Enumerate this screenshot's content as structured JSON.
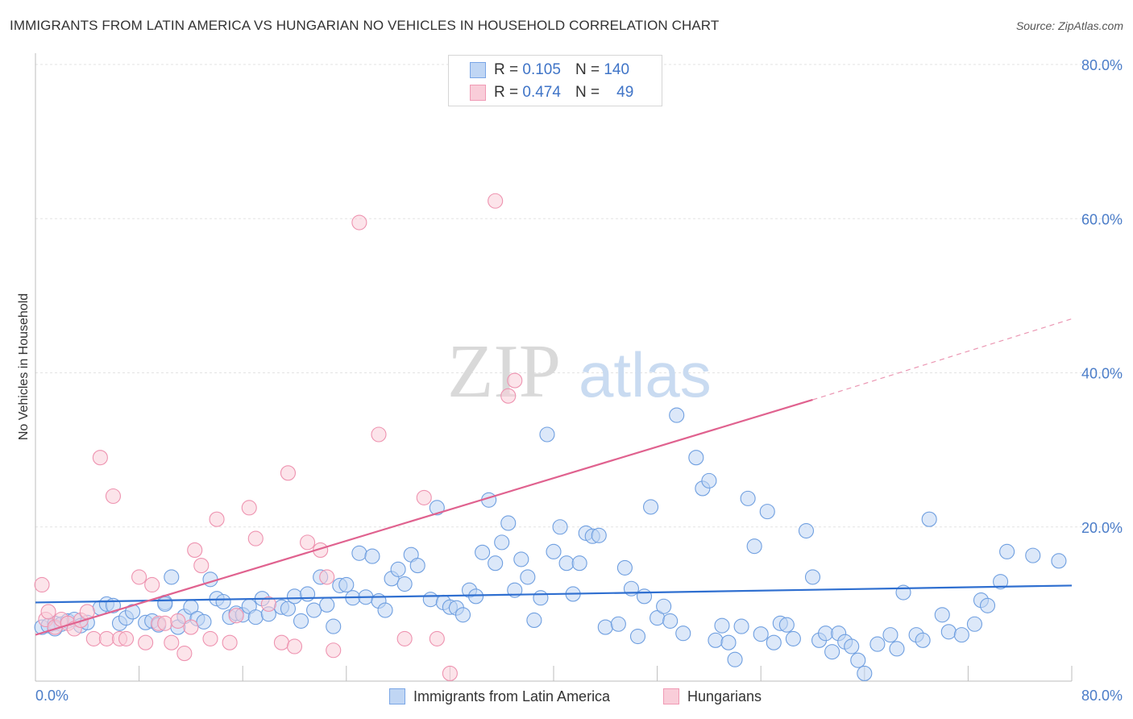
{
  "header": {
    "title": "IMMIGRANTS FROM LATIN AMERICA VS HUNGARIAN NO VEHICLES IN HOUSEHOLD CORRELATION CHART",
    "source": "Source: ZipAtlas.com"
  },
  "watermark": {
    "zip": "ZIP",
    "atlas": "atlas"
  },
  "legend": {
    "rows": [
      {
        "r_label": "R =",
        "r_value": "0.105",
        "n_label": "N =",
        "n_value": "140",
        "color": "#7aa6e6"
      },
      {
        "r_label": "R =",
        "r_value": "0.474",
        "n_label": "N =",
        "n_value": "49",
        "color": "#f09ab5"
      }
    ]
  },
  "bottom_legend": [
    {
      "label": "Immigrants from Latin America",
      "color": "#7aa6e6"
    },
    {
      "label": "Hungarians",
      "color": "#f09ab5"
    }
  ],
  "chart_data": {
    "type": "scatter",
    "ylabel": "No Vehicles in Household",
    "xlim": [
      0,
      80
    ],
    "ylim": [
      0,
      80
    ],
    "x_tick_labels": [
      "0.0%",
      "80.0%"
    ],
    "y_tick_labels": [
      "20.0%",
      "40.0%",
      "60.0%",
      "80.0%"
    ],
    "y_ticks": [
      20,
      40,
      60,
      80
    ],
    "grid": true,
    "series": [
      {
        "name": "Immigrants from Latin America",
        "color": "#7aa6e6",
        "trend": {
          "x0": 0,
          "y0": 10.2,
          "x1": 80,
          "y1": 12.4
        },
        "points": [
          [
            0.5,
            7.0
          ],
          [
            1.0,
            7.2
          ],
          [
            1.5,
            7.5
          ],
          [
            2.0,
            7.4
          ],
          [
            2.5,
            7.8
          ],
          [
            3.0,
            8.0
          ],
          [
            3.5,
            7.2
          ],
          [
            4.0,
            7.6
          ],
          [
            5.0,
            9.5
          ],
          [
            5.5,
            10.0
          ],
          [
            6.5,
            7.5
          ],
          [
            7.0,
            8.2
          ],
          [
            7.5,
            9.0
          ],
          [
            8.5,
            7.6
          ],
          [
            9.0,
            7.8
          ],
          [
            9.5,
            7.3
          ],
          [
            10.0,
            10.2
          ],
          [
            10.5,
            13.5
          ],
          [
            11.0,
            7.0
          ],
          [
            11.5,
            8.4
          ],
          [
            12.0,
            9.6
          ],
          [
            12.5,
            8.1
          ],
          [
            13.0,
            7.7
          ],
          [
            13.5,
            13.2
          ],
          [
            14.0,
            10.7
          ],
          [
            14.5,
            10.3
          ],
          [
            15.0,
            8.3
          ],
          [
            15.5,
            8.8
          ],
          [
            16.0,
            8.6
          ],
          [
            16.5,
            9.7
          ],
          [
            17.0,
            8.3
          ],
          [
            17.5,
            10.7
          ],
          [
            18.0,
            8.7
          ],
          [
            19.0,
            9.6
          ],
          [
            19.5,
            9.4
          ],
          [
            20.0,
            11.0
          ],
          [
            20.5,
            7.8
          ],
          [
            21.0,
            11.3
          ],
          [
            21.5,
            9.2
          ],
          [
            22.0,
            13.5
          ],
          [
            22.5,
            9.9
          ],
          [
            23.0,
            7.1
          ],
          [
            23.5,
            12.4
          ],
          [
            24.0,
            12.5
          ],
          [
            24.5,
            10.8
          ],
          [
            25.0,
            16.6
          ],
          [
            25.5,
            10.9
          ],
          [
            26.0,
            16.2
          ],
          [
            26.5,
            10.4
          ],
          [
            27.0,
            9.2
          ],
          [
            27.5,
            13.3
          ],
          [
            28.0,
            14.5
          ],
          [
            28.5,
            12.6
          ],
          [
            29.0,
            16.4
          ],
          [
            29.5,
            15.0
          ],
          [
            30.5,
            10.6
          ],
          [
            31.0,
            22.5
          ],
          [
            31.5,
            10.2
          ],
          [
            32.0,
            9.6
          ],
          [
            32.5,
            9.5
          ],
          [
            33.0,
            8.6
          ],
          [
            33.5,
            11.8
          ],
          [
            34.0,
            11.0
          ],
          [
            34.5,
            16.7
          ],
          [
            35.0,
            23.5
          ],
          [
            35.5,
            15.3
          ],
          [
            36.0,
            18.0
          ],
          [
            36.5,
            20.5
          ],
          [
            37.0,
            11.8
          ],
          [
            37.5,
            15.8
          ],
          [
            38.0,
            13.5
          ],
          [
            38.5,
            7.9
          ],
          [
            39.0,
            10.8
          ],
          [
            39.5,
            32.0
          ],
          [
            40.0,
            16.8
          ],
          [
            40.5,
            20.0
          ],
          [
            41.0,
            15.3
          ],
          [
            41.5,
            11.3
          ],
          [
            42.0,
            15.3
          ],
          [
            42.5,
            19.2
          ],
          [
            43.0,
            18.8
          ],
          [
            43.5,
            18.9
          ],
          [
            44.0,
            7.0
          ],
          [
            45.0,
            7.4
          ],
          [
            45.5,
            14.7
          ],
          [
            46.0,
            12.0
          ],
          [
            46.5,
            5.8
          ],
          [
            47.0,
            11.0
          ],
          [
            47.5,
            22.6
          ],
          [
            48.0,
            8.2
          ],
          [
            48.5,
            9.7
          ],
          [
            49.0,
            7.8
          ],
          [
            49.5,
            34.5
          ],
          [
            50.0,
            6.2
          ],
          [
            51.0,
            29.0
          ],
          [
            51.5,
            25.0
          ],
          [
            52.0,
            26.0
          ],
          [
            52.5,
            5.3
          ],
          [
            53.0,
            7.2
          ],
          [
            53.5,
            5.0
          ],
          [
            54.0,
            2.8
          ],
          [
            54.5,
            7.1
          ],
          [
            55.0,
            23.7
          ],
          [
            55.5,
            17.5
          ],
          [
            56.0,
            6.1
          ],
          [
            56.5,
            22.0
          ],
          [
            57.0,
            5.0
          ],
          [
            57.5,
            7.5
          ],
          [
            58.0,
            7.3
          ],
          [
            58.5,
            5.5
          ],
          [
            59.5,
            19.5
          ],
          [
            60.0,
            13.5
          ],
          [
            60.5,
            5.3
          ],
          [
            61.0,
            6.2
          ],
          [
            61.5,
            3.8
          ],
          [
            62.0,
            6.2
          ],
          [
            62.5,
            5.1
          ],
          [
            63.0,
            4.5
          ],
          [
            63.5,
            2.7
          ],
          [
            64.0,
            1.0
          ],
          [
            65.0,
            4.8
          ],
          [
            66.0,
            6.0
          ],
          [
            66.5,
            4.2
          ],
          [
            67.0,
            11.5
          ],
          [
            68.0,
            6.0
          ],
          [
            68.5,
            5.3
          ],
          [
            69.0,
            21.0
          ],
          [
            70.0,
            8.6
          ],
          [
            70.5,
            6.4
          ],
          [
            71.5,
            6.0
          ],
          [
            72.5,
            7.4
          ],
          [
            73.0,
            10.5
          ],
          [
            73.5,
            9.8
          ],
          [
            74.5,
            12.9
          ],
          [
            75.0,
            16.8
          ],
          [
            77.0,
            16.3
          ],
          [
            79.0,
            15.6
          ],
          [
            10.0,
            10.0
          ],
          [
            6.0,
            9.8
          ],
          [
            1.5,
            6.8
          ]
        ]
      },
      {
        "name": "Hungarians",
        "color": "#f09ab5",
        "trend": {
          "x0": 0,
          "y0": 6.0,
          "x1": 60,
          "y1": 36.5,
          "dash_x1": 80,
          "dash_y1": 47
        },
        "points": [
          [
            0.5,
            12.5
          ],
          [
            0.8,
            8.0
          ],
          [
            1.0,
            9.0
          ],
          [
            1.5,
            7.0
          ],
          [
            2.0,
            8.0
          ],
          [
            2.5,
            7.5
          ],
          [
            3.0,
            6.8
          ],
          [
            3.5,
            7.9
          ],
          [
            4.0,
            9.0
          ],
          [
            4.5,
            5.5
          ],
          [
            5.0,
            29.0
          ],
          [
            5.5,
            5.5
          ],
          [
            6.0,
            24.0
          ],
          [
            6.5,
            5.5
          ],
          [
            7.0,
            5.5
          ],
          [
            8.0,
            13.5
          ],
          [
            8.5,
            5.0
          ],
          [
            9.0,
            12.5
          ],
          [
            9.5,
            7.5
          ],
          [
            10.0,
            7.5
          ],
          [
            10.5,
            5.0
          ],
          [
            11.0,
            7.8
          ],
          [
            11.5,
            3.6
          ],
          [
            12.0,
            7.0
          ],
          [
            12.3,
            17.0
          ],
          [
            12.8,
            15.0
          ],
          [
            13.5,
            5.5
          ],
          [
            14.0,
            21.0
          ],
          [
            15.0,
            5.0
          ],
          [
            15.5,
            8.5
          ],
          [
            16.5,
            22.5
          ],
          [
            17.0,
            18.5
          ],
          [
            18.0,
            10.0
          ],
          [
            19.0,
            5.0
          ],
          [
            19.5,
            27.0
          ],
          [
            20.0,
            4.5
          ],
          [
            21.0,
            18.0
          ],
          [
            22.0,
            17.0
          ],
          [
            22.5,
            13.5
          ],
          [
            23.0,
            4.0
          ],
          [
            25.0,
            59.5
          ],
          [
            26.5,
            32.0
          ],
          [
            28.5,
            5.5
          ],
          [
            30.0,
            23.8
          ],
          [
            31.0,
            5.5
          ],
          [
            32.0,
            1.0
          ],
          [
            35.5,
            62.3
          ],
          [
            36.5,
            37.0
          ],
          [
            37.0,
            39.0
          ]
        ]
      }
    ]
  }
}
